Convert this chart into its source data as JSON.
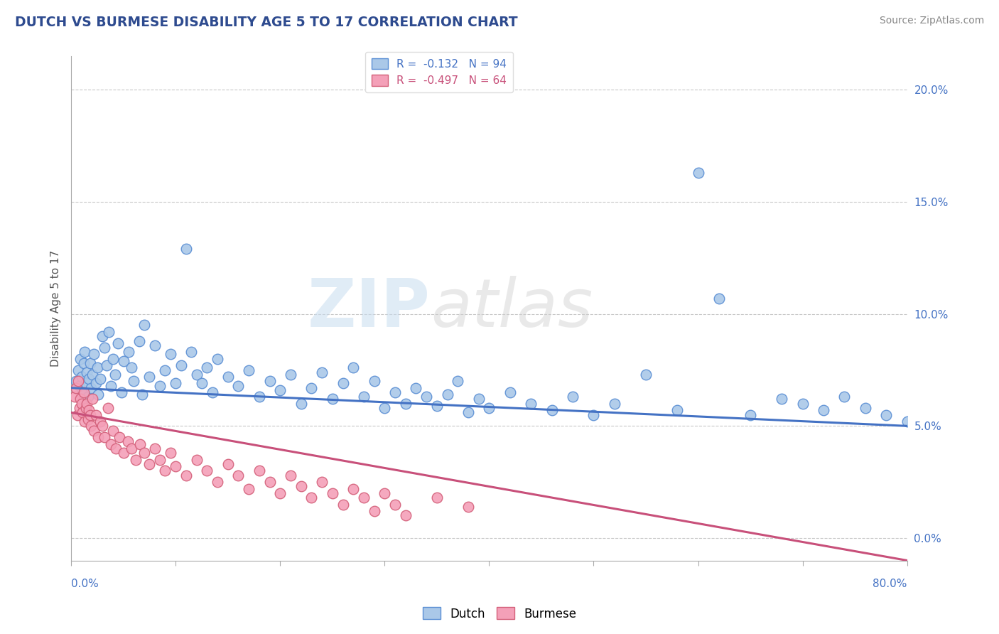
{
  "title": "DUTCH VS BURMESE DISABILITY AGE 5 TO 17 CORRELATION CHART",
  "source_text": "Source: ZipAtlas.com",
  "ylabel": "Disability Age 5 to 17",
  "watermark_zip": "ZIP",
  "watermark_atlas": "atlas",
  "dutch_R": -0.132,
  "dutch_N": 94,
  "burmese_R": -0.497,
  "burmese_N": 64,
  "dutch_color": "#aac8e8",
  "dutch_edge_color": "#5b8fd4",
  "dutch_line_color": "#4472c4",
  "burmese_color": "#f4a0b8",
  "burmese_edge_color": "#d4607a",
  "burmese_line_color": "#c8507a",
  "title_color": "#2E4B8F",
  "source_color": "#888888",
  "axis_label_color": "#4472c4",
  "grid_color": "#c8c8c8",
  "background_color": "#ffffff",
  "xlim": [
    0.0,
    0.8
  ],
  "ylim": [
    -0.01,
    0.215
  ],
  "yticks": [
    0.0,
    0.05,
    0.1,
    0.15,
    0.2
  ],
  "ytick_labels": [
    "0.0%",
    "5.0%",
    "10.0%",
    "15.0%",
    "20.0%"
  ],
  "dutch_trend_x0": 0.0,
  "dutch_trend_y0": 0.067,
  "dutch_trend_x1": 0.8,
  "dutch_trend_y1": 0.05,
  "burmese_trend_x0": 0.0,
  "burmese_trend_y0": 0.056,
  "burmese_trend_x1": 0.8,
  "burmese_trend_y1": -0.01,
  "dutch_points_x": [
    0.005,
    0.007,
    0.008,
    0.009,
    0.01,
    0.011,
    0.012,
    0.013,
    0.014,
    0.015,
    0.016,
    0.017,
    0.018,
    0.019,
    0.02,
    0.022,
    0.024,
    0.025,
    0.026,
    0.028,
    0.03,
    0.032,
    0.034,
    0.036,
    0.038,
    0.04,
    0.042,
    0.045,
    0.048,
    0.05,
    0.055,
    0.058,
    0.06,
    0.065,
    0.068,
    0.07,
    0.075,
    0.08,
    0.085,
    0.09,
    0.095,
    0.1,
    0.105,
    0.11,
    0.115,
    0.12,
    0.125,
    0.13,
    0.135,
    0.14,
    0.15,
    0.16,
    0.17,
    0.18,
    0.19,
    0.2,
    0.21,
    0.22,
    0.23,
    0.24,
    0.25,
    0.26,
    0.27,
    0.28,
    0.29,
    0.3,
    0.31,
    0.32,
    0.33,
    0.34,
    0.35,
    0.36,
    0.37,
    0.38,
    0.39,
    0.4,
    0.42,
    0.44,
    0.46,
    0.48,
    0.5,
    0.52,
    0.55,
    0.58,
    0.6,
    0.62,
    0.65,
    0.68,
    0.7,
    0.72,
    0.74,
    0.76,
    0.78,
    0.8
  ],
  "dutch_points_y": [
    0.07,
    0.075,
    0.068,
    0.08,
    0.072,
    0.065,
    0.078,
    0.083,
    0.069,
    0.074,
    0.063,
    0.071,
    0.078,
    0.067,
    0.073,
    0.082,
    0.069,
    0.076,
    0.064,
    0.071,
    0.09,
    0.085,
    0.077,
    0.092,
    0.068,
    0.08,
    0.073,
    0.087,
    0.065,
    0.079,
    0.083,
    0.076,
    0.07,
    0.088,
    0.064,
    0.095,
    0.072,
    0.086,
    0.068,
    0.075,
    0.082,
    0.069,
    0.077,
    0.129,
    0.083,
    0.073,
    0.069,
    0.076,
    0.065,
    0.08,
    0.072,
    0.068,
    0.075,
    0.063,
    0.07,
    0.066,
    0.073,
    0.06,
    0.067,
    0.074,
    0.062,
    0.069,
    0.076,
    0.063,
    0.07,
    0.058,
    0.065,
    0.06,
    0.067,
    0.063,
    0.059,
    0.064,
    0.07,
    0.056,
    0.062,
    0.058,
    0.065,
    0.06,
    0.057,
    0.063,
    0.055,
    0.06,
    0.073,
    0.057,
    0.163,
    0.107,
    0.055,
    0.062,
    0.06,
    0.057,
    0.063,
    0.058,
    0.055,
    0.052
  ],
  "burmese_points_x": [
    0.003,
    0.005,
    0.006,
    0.007,
    0.008,
    0.009,
    0.01,
    0.011,
    0.012,
    0.013,
    0.014,
    0.015,
    0.016,
    0.017,
    0.018,
    0.019,
    0.02,
    0.022,
    0.024,
    0.026,
    0.028,
    0.03,
    0.032,
    0.035,
    0.038,
    0.04,
    0.043,
    0.046,
    0.05,
    0.054,
    0.058,
    0.062,
    0.066,
    0.07,
    0.075,
    0.08,
    0.085,
    0.09,
    0.095,
    0.1,
    0.11,
    0.12,
    0.13,
    0.14,
    0.15,
    0.16,
    0.17,
    0.18,
    0.19,
    0.2,
    0.21,
    0.22,
    0.23,
    0.24,
    0.25,
    0.26,
    0.27,
    0.28,
    0.29,
    0.3,
    0.31,
    0.32,
    0.35,
    0.38
  ],
  "burmese_points_y": [
    0.063,
    0.067,
    0.055,
    0.07,
    0.058,
    0.062,
    0.06,
    0.056,
    0.065,
    0.052,
    0.058,
    0.06,
    0.053,
    0.057,
    0.055,
    0.05,
    0.062,
    0.048,
    0.055,
    0.045,
    0.052,
    0.05,
    0.045,
    0.058,
    0.042,
    0.048,
    0.04,
    0.045,
    0.038,
    0.043,
    0.04,
    0.035,
    0.042,
    0.038,
    0.033,
    0.04,
    0.035,
    0.03,
    0.038,
    0.032,
    0.028,
    0.035,
    0.03,
    0.025,
    0.033,
    0.028,
    0.022,
    0.03,
    0.025,
    0.02,
    0.028,
    0.023,
    0.018,
    0.025,
    0.02,
    0.015,
    0.022,
    0.018,
    0.012,
    0.02,
    0.015,
    0.01,
    0.018,
    0.014
  ]
}
